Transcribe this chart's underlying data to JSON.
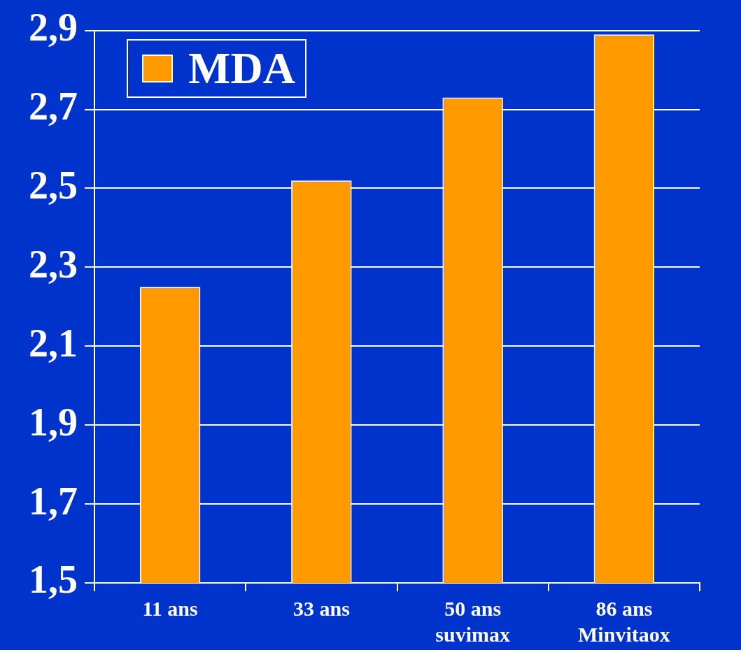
{
  "chart_data": {
    "type": "bar",
    "categories": [
      "11 ans",
      "33 ans",
      "50 ans\nsuvimax",
      "86 ans\nMinvitaox"
    ],
    "series": [
      {
        "name": "MDA",
        "color": "#ff9900",
        "values": [
          2.25,
          2.52,
          2.73,
          2.89
        ]
      }
    ],
    "ylim": [
      1.5,
      2.9
    ],
    "yticks": [
      {
        "value": 1.5,
        "label": "1,5"
      },
      {
        "value": 1.7,
        "label": "1,7"
      },
      {
        "value": 1.9,
        "label": "1,9"
      },
      {
        "value": 2.1,
        "label": "2,1"
      },
      {
        "value": 2.3,
        "label": "2,3"
      },
      {
        "value": 2.5,
        "label": "2,5"
      },
      {
        "value": 2.7,
        "label": "2,7"
      },
      {
        "value": 2.9,
        "label": "2,9"
      }
    ],
    "grid": "y",
    "legend": "top left"
  }
}
